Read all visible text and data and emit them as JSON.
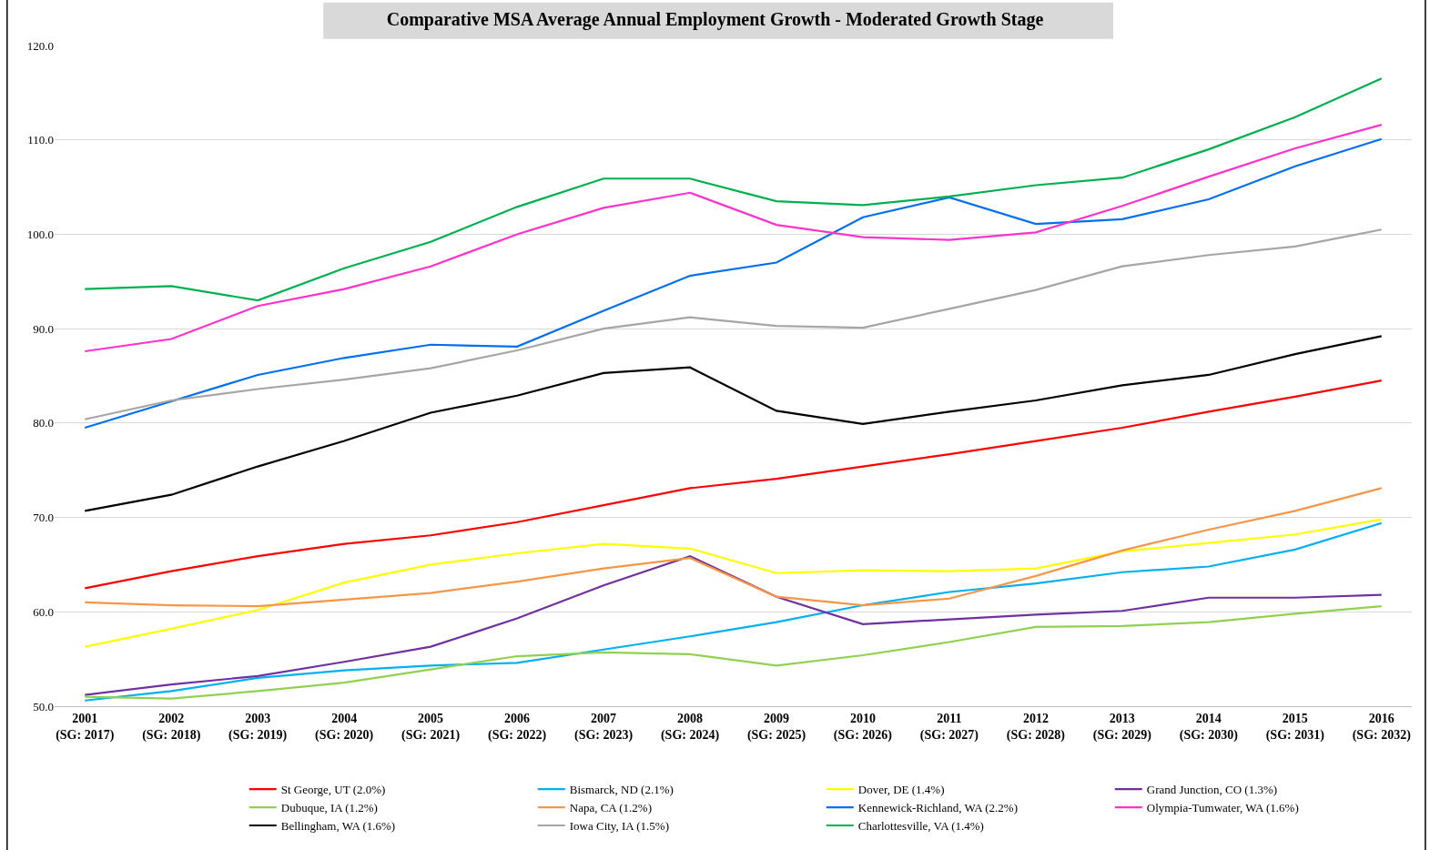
{
  "chart_data": {
    "type": "line",
    "title": "Comparative MSA Average Annual Employment Growth - Moderated Growth Stage",
    "categories": [
      "2001\n(SG: 2017)",
      "2002\n(SG: 2018)",
      "2003\n(SG: 2019)",
      "2004\n(SG: 2020)",
      "2005\n(SG: 2021)",
      "2006\n(SG: 2022)",
      "2007\n(SG: 2023)",
      "2008\n(SG: 2024)",
      "2009\n(SG: 2025)",
      "2010\n(SG: 2026)",
      "2011\n(SG: 2027)",
      "2012\n(SG: 2028)",
      "2013\n(SG: 2029)",
      "2014\n(SG: 2030)",
      "2015\n(SG: 2031)",
      "2016\n(SG: 2032)"
    ],
    "ylim": [
      50,
      120
    ],
    "yticks": [
      {
        "value": 50,
        "label": "50.0"
      },
      {
        "value": 60,
        "label": "60.0"
      },
      {
        "value": 70,
        "label": "70.0"
      },
      {
        "value": 80,
        "label": "80.0"
      },
      {
        "value": 90,
        "label": "90.0"
      },
      {
        "value": 100,
        "label": "100.0"
      },
      {
        "value": 110,
        "label": "110.0"
      },
      {
        "value": 120,
        "label": "120.0"
      }
    ],
    "grid": "y",
    "legend": "bottom",
    "marker": "none",
    "line_style": "solid",
    "series": [
      {
        "name": "St George, UT (2.0%)",
        "color": "#ff0000",
        "values": [
          62.5,
          64.3,
          65.9,
          67.2,
          68.1,
          69.5,
          71.3,
          73.1,
          74.1,
          75.4,
          76.7,
          78.1,
          79.5,
          81.2,
          82.8,
          84.5
        ]
      },
      {
        "name": "Bismarck, ND (2.1%)",
        "color": "#00b0f0",
        "values": [
          50.6,
          51.6,
          53.0,
          53.8,
          54.3,
          54.6,
          56.0,
          57.4,
          58.9,
          60.7,
          62.1,
          63.0,
          64.2,
          64.8,
          66.6,
          69.4
        ]
      },
      {
        "name": "Dover, DE (1.4%)",
        "color": "#ffff00",
        "values": [
          56.3,
          58.2,
          60.2,
          63.1,
          65.0,
          66.2,
          67.2,
          66.7,
          64.1,
          64.4,
          64.3,
          64.6,
          66.4,
          67.3,
          68.2,
          69.8
        ]
      },
      {
        "name": "Grand Junction, CO (1.3%)",
        "color": "#7030a0",
        "values": [
          51.2,
          52.3,
          53.2,
          54.7,
          56.3,
          59.3,
          62.8,
          65.9,
          61.6,
          58.7,
          59.2,
          59.7,
          60.1,
          61.5,
          61.5,
          61.8
        ]
      },
      {
        "name": "Dubuque, IA (1.2%)",
        "color": "#92d050",
        "values": [
          51.0,
          50.8,
          51.6,
          52.5,
          53.9,
          55.3,
          55.7,
          55.5,
          54.3,
          55.4,
          56.8,
          58.4,
          58.5,
          58.9,
          59.8,
          60.6
        ]
      },
      {
        "name": "Napa, CA (1.2%)",
        "color": "#f79646",
        "values": [
          61.0,
          60.7,
          60.6,
          61.3,
          62.0,
          63.2,
          64.6,
          65.7,
          61.6,
          60.7,
          61.4,
          63.8,
          66.5,
          68.7,
          70.7,
          73.1
        ]
      },
      {
        "name": "Kennewick-Richland, WA (2.2%)",
        "color": "#0070f0",
        "values": [
          79.5,
          82.3,
          85.1,
          86.9,
          88.3,
          88.1,
          91.9,
          95.6,
          97.0,
          101.8,
          103.9,
          101.1,
          101.6,
          103.7,
          107.2,
          110.1
        ]
      },
      {
        "name": "Olympia-Tumwater, WA (1.6%)",
        "color": "#ff33cc",
        "values": [
          87.6,
          88.9,
          92.4,
          94.2,
          96.6,
          100.0,
          102.8,
          104.4,
          101.0,
          99.7,
          99.4,
          100.2,
          103.0,
          106.1,
          109.1,
          111.6
        ]
      },
      {
        "name": "Bellingham, WA (1.6%)",
        "color": "#000000",
        "values": [
          70.7,
          72.4,
          75.4,
          78.1,
          81.1,
          82.9,
          85.3,
          85.9,
          81.3,
          79.9,
          81.2,
          82.4,
          84.0,
          85.1,
          87.3,
          89.2
        ]
      },
      {
        "name": "Iowa City, IA (1.5%)",
        "color": "#a6a6a6",
        "values": [
          80.4,
          82.4,
          83.6,
          84.6,
          85.8,
          87.7,
          90.0,
          91.2,
          90.3,
          90.1,
          92.1,
          94.1,
          96.6,
          97.8,
          98.7,
          100.5
        ]
      },
      {
        "name": "Charlottesville, VA (1.4%)",
        "color": "#00b050",
        "values": [
          94.2,
          94.5,
          93.0,
          96.4,
          99.2,
          102.9,
          105.9,
          105.9,
          103.5,
          103.1,
          104.0,
          105.2,
          106.0,
          109.0,
          112.4,
          116.5
        ]
      }
    ]
  }
}
